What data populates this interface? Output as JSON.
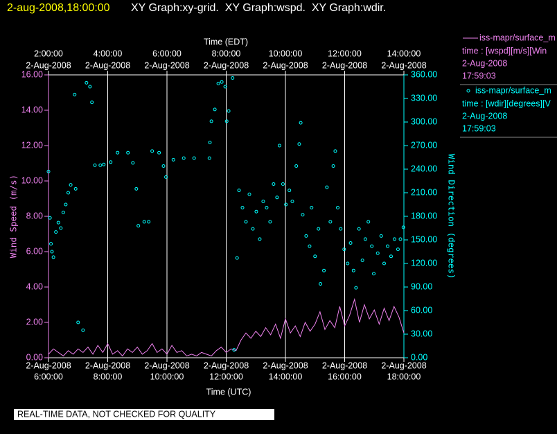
{
  "header": {
    "date": "2-aug-2008,18:00:00",
    "graphs": "XY Graph:xy-grid.  XY Graph:wspd.  XY Graph:wdir."
  },
  "footer": "REAL-TIME DATA, NOT CHECKED FOR QUALITY",
  "chart_data": {
    "type": "line",
    "xlabel": "Time (UTC)",
    "x2label": "Time (EDT)",
    "ylabel": "Wind Speed (m/s)",
    "y2label": "Wind Direction (degrees)",
    "xlim": [
      "2008-08-02T06:00",
      "2008-08-02T18:00"
    ],
    "xticks": [
      {
        "value": "2008-08-02T06:00",
        "label": [
          "2-Aug-2008",
          "6:00:00"
        ]
      },
      {
        "value": "2008-08-02T08:00",
        "label": [
          "2-Aug-2008",
          "8:00:00"
        ]
      },
      {
        "value": "2008-08-02T10:00",
        "label": [
          "2-Aug-2008",
          "10:00:00"
        ]
      },
      {
        "value": "2008-08-02T12:00",
        "label": [
          "2-Aug-2008",
          "12:00:00"
        ]
      },
      {
        "value": "2008-08-02T14:00",
        "label": [
          "2-Aug-2008",
          "14:00:00"
        ]
      },
      {
        "value": "2008-08-02T16:00",
        "label": [
          "2-Aug-2008",
          "16:00:00"
        ]
      },
      {
        "value": "2008-08-02T18:00",
        "label": [
          "2-Aug-2008",
          "18:00:00"
        ]
      }
    ],
    "x2ticks": [
      {
        "value": "2008-08-02T06:00",
        "label": [
          "2:00:00",
          "2-Aug-2008"
        ]
      },
      {
        "value": "2008-08-02T08:00",
        "label": [
          "4:00:00",
          "2-Aug-2008"
        ]
      },
      {
        "value": "2008-08-02T10:00",
        "label": [
          "6:00:00",
          "2-Aug-2008"
        ]
      },
      {
        "value": "2008-08-02T12:00",
        "label": [
          "8:00:00",
          "2-Aug-2008"
        ]
      },
      {
        "value": "2008-08-02T14:00",
        "label": [
          "10:00:00",
          "2-Aug-2008"
        ]
      },
      {
        "value": "2008-08-02T16:00",
        "label": [
          "12:00:00",
          "2-Aug-2008"
        ]
      },
      {
        "value": "2008-08-02T18:00",
        "label": [
          "14:00:00",
          "2-Aug-2008"
        ]
      }
    ],
    "ylim": [
      0,
      16
    ],
    "yticks": [
      {
        "value": 0,
        "label": "0.00"
      },
      {
        "value": 2,
        "label": "2.00"
      },
      {
        "value": 4,
        "label": "4.00"
      },
      {
        "value": 6,
        "label": "6.00"
      },
      {
        "value": 8,
        "label": "8.00"
      },
      {
        "value": 10,
        "label": "10.00"
      },
      {
        "value": 12,
        "label": "12.00"
      },
      {
        "value": 14,
        "label": "14.00"
      },
      {
        "value": 16,
        "label": "16.00"
      }
    ],
    "y2lim": [
      0,
      360
    ],
    "y2ticks": [
      {
        "value": 0,
        "label": "0.00"
      },
      {
        "value": 30,
        "label": "30.00"
      },
      {
        "value": 60,
        "label": "60.00"
      },
      {
        "value": 90,
        "label": "90.00"
      },
      {
        "value": 120,
        "label": "120.00"
      },
      {
        "value": 150,
        "label": "150.00"
      },
      {
        "value": 180,
        "label": "180.00"
      },
      {
        "value": 210,
        "label": "210.00"
      },
      {
        "value": 240,
        "label": "240.00"
      },
      {
        "value": 270,
        "label": "270.00"
      },
      {
        "value": 300,
        "label": "300.00"
      },
      {
        "value": 330,
        "label": "330.00"
      },
      {
        "value": 360,
        "label": "360.00"
      }
    ],
    "grid": true,
    "series": [
      {
        "name": "iss-mapr/surface_m",
        "legend_details": [
          "time : [wspd][m/s][Win",
          "2-Aug-2008",
          "17:59:03"
        ],
        "color": "#ee82ee",
        "mark": "line",
        "x": [
          "2008-08-02T06:00",
          "2008-08-02T06:10",
          "2008-08-02T06:20",
          "2008-08-02T06:30",
          "2008-08-02T06:40",
          "2008-08-02T06:50",
          "2008-08-02T07:00",
          "2008-08-02T07:10",
          "2008-08-02T07:20",
          "2008-08-02T07:30",
          "2008-08-02T07:40",
          "2008-08-02T07:50",
          "2008-08-02T08:00",
          "2008-08-02T08:10",
          "2008-08-02T08:20",
          "2008-08-02T08:30",
          "2008-08-02T08:40",
          "2008-08-02T08:50",
          "2008-08-02T09:00",
          "2008-08-02T09:10",
          "2008-08-02T09:20",
          "2008-08-02T09:30",
          "2008-08-02T09:40",
          "2008-08-02T09:50",
          "2008-08-02T10:00",
          "2008-08-02T10:10",
          "2008-08-02T10:20",
          "2008-08-02T10:30",
          "2008-08-02T10:40",
          "2008-08-02T10:50",
          "2008-08-02T11:00",
          "2008-08-02T11:10",
          "2008-08-02T11:20",
          "2008-08-02T11:30",
          "2008-08-02T11:40",
          "2008-08-02T11:50",
          "2008-08-02T12:00",
          "2008-08-02T12:10",
          "2008-08-02T12:20",
          "2008-08-02T12:30",
          "2008-08-02T12:40",
          "2008-08-02T12:50",
          "2008-08-02T13:00",
          "2008-08-02T13:10",
          "2008-08-02T13:20",
          "2008-08-02T13:30",
          "2008-08-02T13:40",
          "2008-08-02T13:50",
          "2008-08-02T14:00",
          "2008-08-02T14:10",
          "2008-08-02T14:20",
          "2008-08-02T14:30",
          "2008-08-02T14:40",
          "2008-08-02T14:50",
          "2008-08-02T15:00",
          "2008-08-02T15:10",
          "2008-08-02T15:20",
          "2008-08-02T15:30",
          "2008-08-02T15:40",
          "2008-08-02T15:50",
          "2008-08-02T16:00",
          "2008-08-02T16:10",
          "2008-08-02T16:20",
          "2008-08-02T16:30",
          "2008-08-02T16:40",
          "2008-08-02T16:50",
          "2008-08-02T17:00",
          "2008-08-02T17:10",
          "2008-08-02T17:20",
          "2008-08-02T17:30",
          "2008-08-02T17:40",
          "2008-08-02T17:50",
          "2008-08-02T18:00"
        ],
        "values": [
          0.2,
          0.5,
          0.3,
          0.1,
          0.4,
          0.2,
          0.5,
          0.3,
          0.6,
          0.2,
          0.7,
          0.3,
          0.8,
          0.2,
          0.4,
          0.1,
          0.5,
          0.3,
          0.6,
          0.2,
          0.4,
          0.8,
          0.3,
          0.5,
          0.2,
          0.7,
          0.3,
          0.4,
          0.1,
          0.2,
          0.1,
          0.3,
          0.2,
          0.1,
          0.4,
          0.6,
          0.3,
          0.5,
          0.4,
          1.0,
          1.4,
          1.1,
          1.5,
          1.2,
          1.7,
          1.3,
          1.9,
          1.1,
          2.2,
          1.4,
          1.8,
          1.2,
          2.0,
          1.5,
          1.9,
          2.6,
          1.6,
          2.1,
          1.7,
          2.9,
          1.8,
          2.4,
          3.3,
          2.0,
          3.0,
          2.2,
          2.7,
          1.9,
          2.8,
          2.1,
          2.9,
          2.3,
          1.4
        ]
      },
      {
        "name": "iss-mapr/surface_m",
        "legend_details": [
          "time : [wdir][degrees][V",
          "2-Aug-2008",
          "17:59:03"
        ],
        "color": "#00ffff",
        "mark": "scatter",
        "axis": "y2",
        "x": [
          "2008-08-02T06:00",
          "2008-08-02T06:03",
          "2008-08-02T06:05",
          "2008-08-02T06:07",
          "2008-08-02T06:10",
          "2008-08-02T06:15",
          "2008-08-02T06:20",
          "2008-08-02T06:25",
          "2008-08-02T06:30",
          "2008-08-02T06:35",
          "2008-08-02T06:40",
          "2008-08-02T06:45",
          "2008-08-02T06:53",
          "2008-08-02T06:55",
          "2008-08-02T07:00",
          "2008-08-02T07:10",
          "2008-08-02T07:17",
          "2008-08-02T07:24",
          "2008-08-02T07:28",
          "2008-08-02T07:34",
          "2008-08-02T07:45",
          "2008-08-02T07:52",
          "2008-08-02T08:06",
          "2008-08-02T08:20",
          "2008-08-02T08:41",
          "2008-08-02T08:51",
          "2008-08-02T08:58",
          "2008-08-02T09:02",
          "2008-08-02T09:14",
          "2008-08-02T09:23",
          "2008-08-02T09:30",
          "2008-08-02T09:44",
          "2008-08-02T09:53",
          "2008-08-02T09:58",
          "2008-08-02T10:13",
          "2008-08-02T10:34",
          "2008-08-02T10:55",
          "2008-08-02T11:26",
          "2008-08-02T11:27",
          "2008-08-02T11:30",
          "2008-08-02T11:37",
          "2008-08-02T11:44",
          "2008-08-02T11:51",
          "2008-08-02T11:58",
          "2008-08-02T12:01",
          "2008-08-02T12:05",
          "2008-08-02T12:13",
          "2008-08-02T12:16",
          "2008-08-02T12:22",
          "2008-08-02T12:26",
          "2008-08-02T12:33",
          "2008-08-02T12:40",
          "2008-08-02T12:47",
          "2008-08-02T12:54",
          "2008-08-02T13:01",
          "2008-08-02T13:08",
          "2008-08-02T13:15",
          "2008-08-02T13:22",
          "2008-08-02T13:29",
          "2008-08-02T13:36",
          "2008-08-02T13:43",
          "2008-08-02T13:48",
          "2008-08-02T13:55",
          "2008-08-02T14:01",
          "2008-08-02T14:08",
          "2008-08-02T14:14",
          "2008-08-02T14:22",
          "2008-08-02T14:28",
          "2008-08-02T14:31",
          "2008-08-02T14:35",
          "2008-08-02T14:42",
          "2008-08-02T14:49",
          "2008-08-02T14:53",
          "2008-08-02T15:00",
          "2008-08-02T15:07",
          "2008-08-02T15:11",
          "2008-08-02T15:18",
          "2008-08-02T15:24",
          "2008-08-02T15:31",
          "2008-08-02T15:37",
          "2008-08-02T15:41",
          "2008-08-02T15:46",
          "2008-08-02T15:52",
          "2008-08-02T15:59",
          "2008-08-02T16:06",
          "2008-08-02T16:12",
          "2008-08-02T16:18",
          "2008-08-02T16:23",
          "2008-08-02T16:29",
          "2008-08-02T16:36",
          "2008-08-02T16:42",
          "2008-08-02T16:48",
          "2008-08-02T16:55",
          "2008-08-02T16:59",
          "2008-08-02T17:07",
          "2008-08-02T17:14",
          "2008-08-02T17:20",
          "2008-08-02T17:27",
          "2008-08-02T17:34",
          "2008-08-02T17:41",
          "2008-08-02T17:48",
          "2008-08-02T17:53",
          "2008-08-02T17:59"
        ],
        "values": [
          237,
          178,
          145,
          135,
          128,
          160,
          172,
          165,
          185,
          195,
          210,
          220,
          335,
          215,
          45,
          35,
          350,
          345,
          325,
          245,
          245,
          246,
          249,
          261,
          261,
          248,
          215,
          168,
          173,
          173,
          263,
          261,
          244,
          230,
          252,
          254,
          254,
          254,
          274,
          301,
          316,
          349,
          351,
          345,
          301,
          314,
          356,
          10,
          127,
          213,
          191,
          173,
          208,
          164,
          186,
          151,
          199,
          191,
          173,
          221,
          204,
          270,
          221,
          195,
          213,
          199,
          244,
          272,
          299,
          182,
          155,
          142,
          191,
          129,
          164,
          94,
          111,
          217,
          173,
          244,
          263,
          191,
          164,
          138,
          120,
          146,
          111,
          89,
          164,
          124,
          151,
          173,
          142,
          107,
          133,
          155,
          120,
          142,
          129,
          151,
          138,
          151,
          166
        ]
      }
    ]
  }
}
